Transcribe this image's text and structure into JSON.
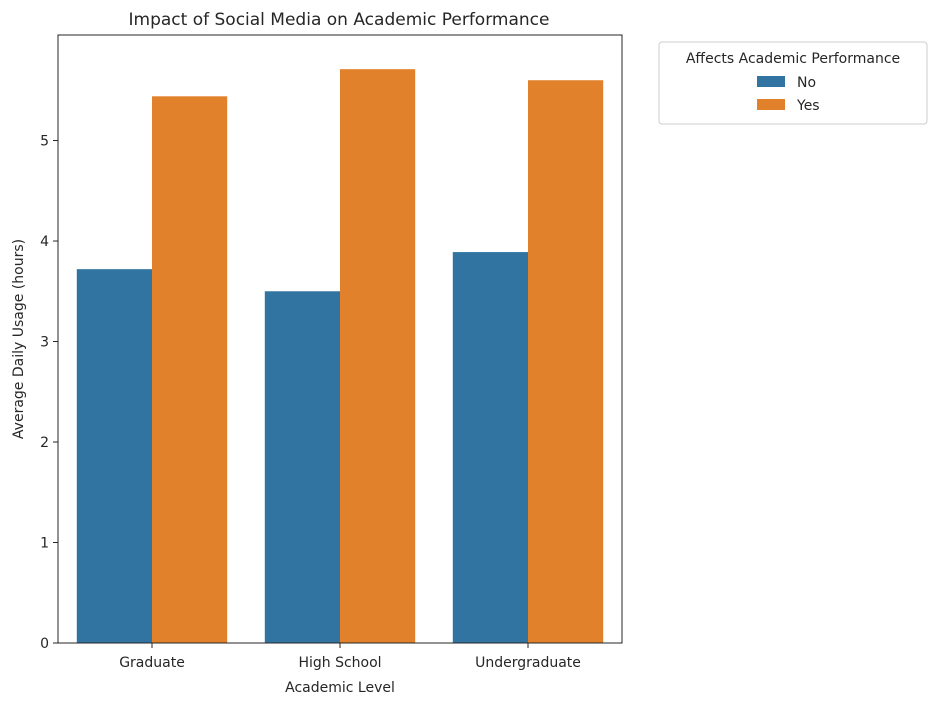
{
  "chart_data": {
    "type": "bar",
    "title": "Impact of Social Media on Academic Performance",
    "xlabel": "Academic Level",
    "ylabel": "Average Daily Usage (hours)",
    "categories": [
      "Graduate",
      "High School",
      "Undergraduate"
    ],
    "series": [
      {
        "name": "No",
        "values": [
          3.72,
          3.5,
          3.89
        ],
        "color": "#3274a1"
      },
      {
        "name": "Yes",
        "values": [
          5.44,
          5.71,
          5.6
        ],
        "color": "#e1812c"
      }
    ],
    "ylim": [
      0,
      6.05
    ],
    "yticks": [
      "0",
      "1",
      "2",
      "3",
      "4",
      "5"
    ],
    "grid": false,
    "legend": {
      "title": "Affects Academic Performance",
      "placement": "outside-top-right"
    }
  }
}
